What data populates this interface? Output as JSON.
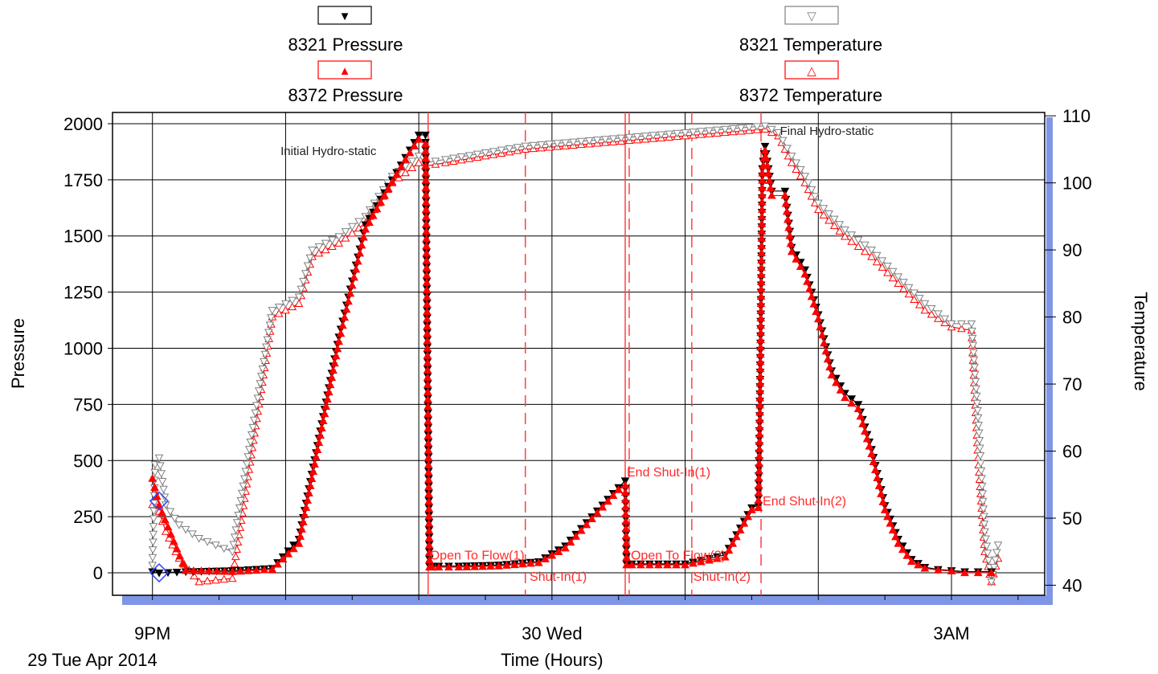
{
  "chart_data": {
    "type": "line",
    "xlabel": "Time (Hours)",
    "ylabel": "Pressure",
    "y2label": "Temperature",
    "x_range_hours": [
      -0.3,
      6.7
    ],
    "ylim": [
      -100,
      2050
    ],
    "y2lim": [
      38.5,
      110.5
    ],
    "grid": true,
    "x_ticks": [
      {
        "h": 0,
        "label": "9PM",
        "sublabel": "29 Tue Apr 2014"
      },
      {
        "h": 3,
        "label": "30 Wed",
        "sublabel": "Time (Hours)"
      },
      {
        "h": 6,
        "label": "3AM",
        "sublabel": ""
      }
    ],
    "x_gridlines_hours": [
      0,
      1,
      2,
      3,
      4,
      5,
      6
    ],
    "y_ticks": [
      "0",
      "250",
      "500",
      "750",
      "1000",
      "1250",
      "1500",
      "1750",
      "2000"
    ],
    "y2_ticks": [
      "40",
      "50",
      "60",
      "70",
      "80",
      "90",
      "100",
      "110"
    ],
    "legend": [
      {
        "label": "8321 Pressure",
        "symbol": "▼",
        "color": "#000000"
      },
      {
        "label": "8372 Pressure",
        "symbol": "▲",
        "color": "#ff0000"
      },
      {
        "label": "8321 Temperature",
        "symbol": "▽",
        "color": "#808080"
      },
      {
        "label": "8372 Temperature",
        "symbol": "△",
        "color": "#ff0000"
      }
    ],
    "series": [
      {
        "name": "8321 Pressure",
        "axis": "left",
        "color": "#000000",
        "marker": "tri-down-filled",
        "x": [
          0.0,
          0.05,
          0.25,
          0.6,
          0.9,
          1.1,
          1.25,
          1.4,
          1.5,
          1.6,
          1.8,
          1.9,
          2.0,
          2.05,
          2.08,
          2.1,
          2.15,
          2.3,
          2.6,
          2.9,
          3.1,
          3.3,
          3.5,
          3.55,
          3.56,
          3.6,
          3.8,
          4.0,
          4.3,
          4.5,
          4.55,
          4.56,
          4.58,
          4.6,
          4.65,
          4.75,
          4.8,
          4.9,
          5.0,
          5.1,
          5.2,
          5.3,
          5.4,
          5.5,
          5.6,
          5.7,
          5.8,
          5.9,
          6.0,
          6.1,
          6.2,
          6.3
        ],
        "y": [
          5,
          0,
          5,
          10,
          20,
          150,
          600,
          1050,
          1300,
          1550,
          1750,
          1850,
          1950,
          1950,
          30,
          30,
          30,
          30,
          35,
          50,
          120,
          250,
          380,
          410,
          40,
          40,
          40,
          40,
          80,
          290,
          300,
          700,
          1800,
          1900,
          1700,
          1700,
          1450,
          1350,
          1150,
          900,
          800,
          750,
          550,
          300,
          150,
          60,
          25,
          15,
          10,
          5,
          5,
          5
        ]
      },
      {
        "name": "8372 Pressure",
        "axis": "left",
        "color": "#ff0000",
        "marker": "tri-up-filled",
        "x": [
          0.0,
          0.05,
          0.25,
          0.6,
          0.9,
          1.1,
          1.25,
          1.4,
          1.5,
          1.6,
          1.8,
          1.9,
          2.0,
          2.05,
          2.08,
          2.1,
          2.15,
          2.3,
          2.6,
          2.9,
          3.1,
          3.3,
          3.5,
          3.55,
          3.56,
          3.6,
          3.8,
          4.0,
          4.3,
          4.5,
          4.55,
          4.56,
          4.58,
          4.6,
          4.65,
          4.75,
          4.8,
          4.9,
          5.0,
          5.1,
          5.2,
          5.3,
          5.4,
          5.5,
          5.6,
          5.7,
          5.8,
          5.9,
          6.0,
          6.1,
          6.2,
          6.3
        ],
        "y": [
          420,
          300,
          10,
          5,
          15,
          130,
          580,
          1030,
          1280,
          1530,
          1740,
          1840,
          1930,
          1910,
          25,
          25,
          25,
          25,
          30,
          45,
          110,
          240,
          370,
          390,
          35,
          35,
          35,
          35,
          70,
          280,
          290,
          650,
          1780,
          1880,
          1680,
          1680,
          1430,
          1330,
          1130,
          880,
          780,
          730,
          530,
          280,
          130,
          50,
          20,
          12,
          8,
          0,
          0,
          0
        ]
      },
      {
        "name": "8321 Temperature",
        "axis": "right",
        "color": "#808080",
        "marker": "tri-down-open",
        "x": [
          0.0,
          0.02,
          0.05,
          0.1,
          0.2,
          0.35,
          0.6,
          0.9,
          1.1,
          1.2,
          1.4,
          1.6,
          1.8,
          2.0,
          2.05,
          2.2,
          2.5,
          2.8,
          3.1,
          3.4,
          3.7,
          4.0,
          4.3,
          4.6,
          4.7,
          4.8,
          4.9,
          5.0,
          5.2,
          5.4,
          5.6,
          5.8,
          6.0,
          6.15,
          6.2,
          6.25,
          6.3,
          6.35
        ],
        "y": [
          43,
          58,
          59,
          52,
          49,
          47,
          45,
          81,
          83,
          90,
          92,
          95,
          101,
          104,
          103,
          103.5,
          104.5,
          105.5,
          106,
          106.5,
          107,
          107.5,
          108,
          108.5,
          107.5,
          104,
          101,
          97,
          93,
          90,
          86,
          82,
          79,
          79,
          65,
          48,
          40.5,
          46
        ]
      },
      {
        "name": "8372 Temperature",
        "axis": "right",
        "color": "#ff0000",
        "marker": "tri-up-open",
        "x": [
          0.0,
          0.02,
          0.05,
          0.1,
          0.2,
          0.35,
          0.6,
          0.9,
          1.1,
          1.2,
          1.4,
          1.6,
          1.8,
          2.0,
          2.05,
          2.2,
          2.5,
          2.8,
          3.1,
          3.4,
          3.7,
          4.0,
          4.3,
          4.6,
          4.7,
          4.8,
          4.9,
          5.0,
          5.2,
          5.4,
          5.6,
          5.8,
          6.0,
          6.15,
          6.2,
          6.25,
          6.3,
          6.35
        ],
        "y": [
          52,
          54,
          51,
          48,
          44,
          40.5,
          41,
          80,
          82,
          89,
          91,
          94,
          100,
          103,
          102.5,
          103,
          104,
          105,
          105.5,
          106,
          106.5,
          107,
          107.5,
          108,
          107,
          103,
          100,
          96,
          92,
          89,
          85,
          81,
          78.5,
          78,
          59,
          45,
          40.5,
          44
        ]
      }
    ],
    "event_lines": [
      {
        "h": 2.07,
        "style": "solid",
        "label": ""
      },
      {
        "h": 2.8,
        "style": "dashed",
        "label": ""
      },
      {
        "h": 3.55,
        "style": "solid",
        "label": ""
      },
      {
        "h": 3.58,
        "style": "dashed",
        "label": ""
      },
      {
        "h": 4.05,
        "style": "dashed",
        "label": ""
      },
      {
        "h": 4.57,
        "style": "dashed",
        "label": ""
      }
    ],
    "annotations": [
      {
        "text": "Initial Hydro-static",
        "h": 0.95,
        "y": 1860,
        "color": "black"
      },
      {
        "text": "Final Hydro-static",
        "h": 4.7,
        "y": 1950,
        "color": "black"
      },
      {
        "text": "Open To Flow(1)",
        "h": 2.07,
        "y": 60,
        "color": "red"
      },
      {
        "text": "Shut-In(1)",
        "h": 2.82,
        "y": -35,
        "color": "red"
      },
      {
        "text": "End Shut-In(1)",
        "h": 3.55,
        "y": 430,
        "color": "red"
      },
      {
        "text": "Open To Flow(2)",
        "h": 3.58,
        "y": 60,
        "color": "red"
      },
      {
        "text": "Shut-In(2)",
        "h": 4.05,
        "y": -35,
        "color": "red"
      },
      {
        "text": "End Shut-In(2)",
        "h": 4.57,
        "y": 300,
        "color": "red"
      }
    ],
    "gauge_markers": [
      {
        "h": 0.05,
        "y": 320
      },
      {
        "h": 0.05,
        "y": 0
      }
    ]
  }
}
